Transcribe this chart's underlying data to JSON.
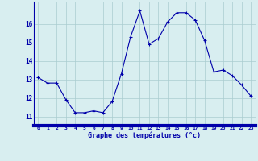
{
  "x": [
    0,
    1,
    2,
    3,
    4,
    5,
    6,
    7,
    8,
    9,
    10,
    11,
    12,
    13,
    14,
    15,
    16,
    17,
    18,
    19,
    20,
    21,
    22,
    23
  ],
  "y": [
    13.1,
    12.8,
    12.8,
    11.9,
    11.2,
    11.2,
    11.3,
    11.2,
    11.8,
    13.3,
    15.3,
    16.7,
    14.9,
    15.2,
    16.1,
    16.6,
    16.6,
    16.2,
    15.1,
    13.4,
    13.5,
    13.2,
    12.7,
    12.1
  ],
  "line_color": "#0000aa",
  "marker": "+",
  "marker_size": 3,
  "bg_color": "#d8eef0",
  "grid_color": "#aaccd0",
  "xlabel": "Graphe des températures (°c)",
  "xlabel_color": "#0000aa",
  "tick_color": "#0000aa",
  "ylim": [
    10.5,
    17.2
  ],
  "yticks": [
    11,
    12,
    13,
    14,
    15,
    16
  ],
  "bottom_bar_color": "#0000aa",
  "xtick_labels": [
    "0",
    "1",
    "2",
    "3",
    "4",
    "5",
    "6",
    "7",
    "8",
    "9",
    "10",
    "11",
    "12",
    "13",
    "14",
    "15",
    "16",
    "17",
    "18",
    "19",
    "20",
    "21",
    "22",
    "23"
  ]
}
